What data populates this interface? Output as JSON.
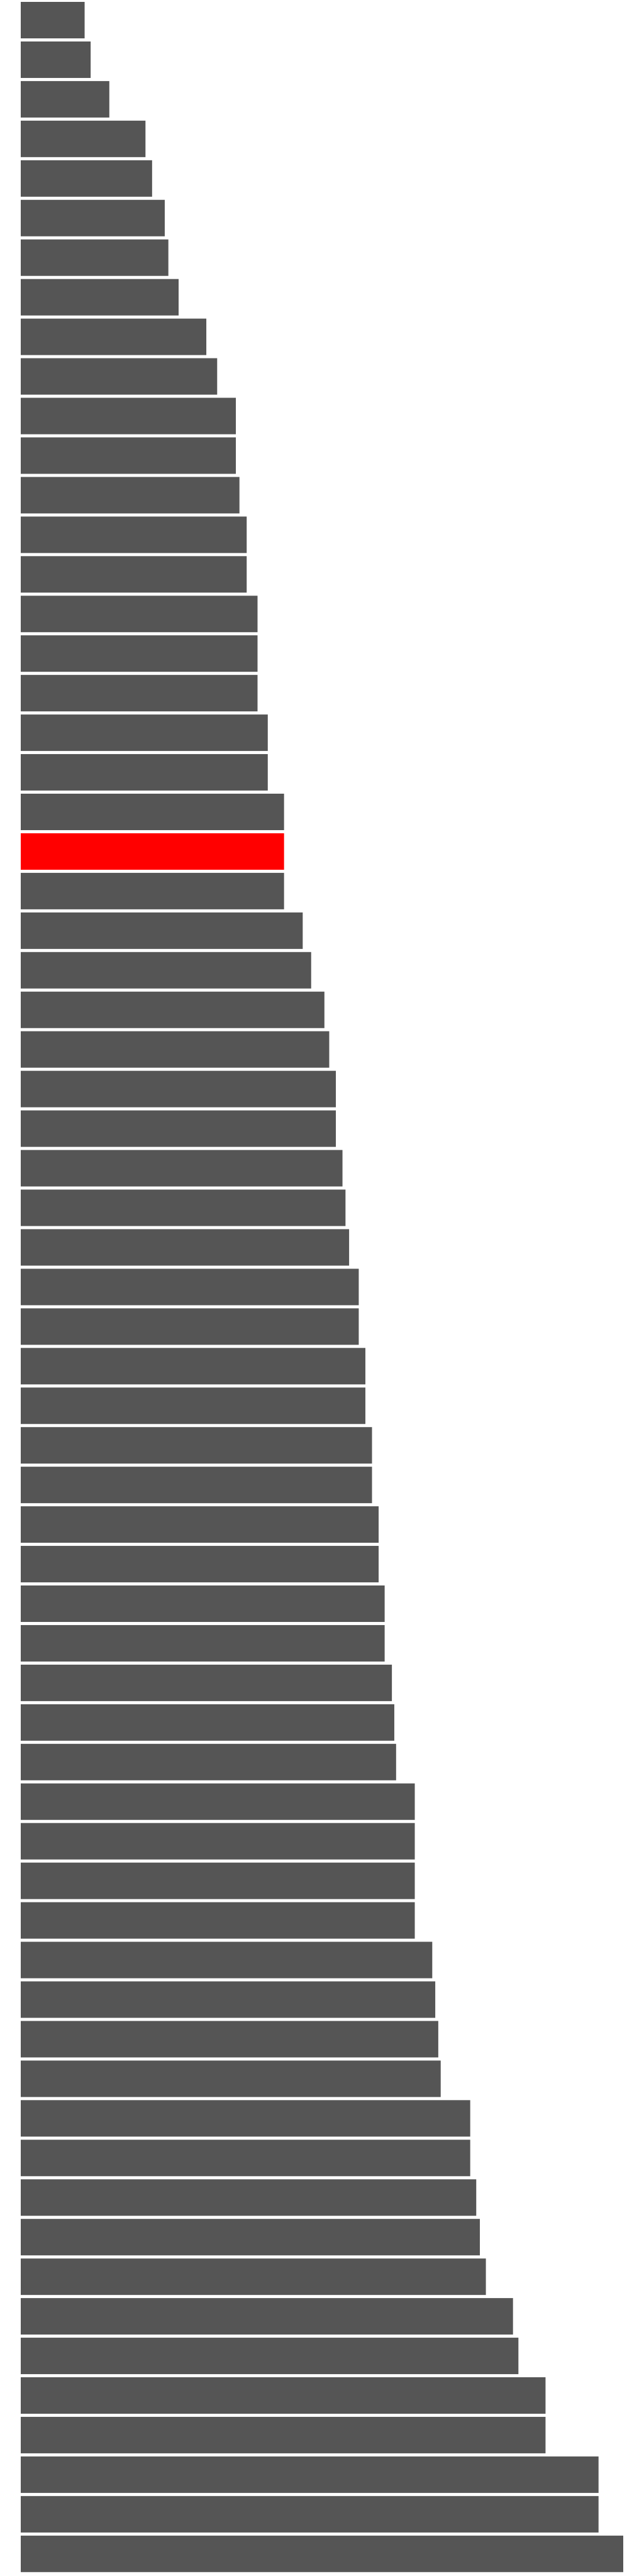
{
  "chart_data": {
    "type": "bar",
    "orientation": "horizontal",
    "title": "",
    "xlabel": "",
    "ylabel": "",
    "grid": false,
    "legend": false,
    "xlim": [
      0,
      100
    ],
    "colors": {
      "bar": "#555555",
      "highlight": "#ff0000",
      "background": "#ffffff"
    },
    "highlight_index": 21,
    "values": [
      10.6,
      11.6,
      14.7,
      20.7,
      21.8,
      23.9,
      24.5,
      26.2,
      30.8,
      32.6,
      35.7,
      35.7,
      36.3,
      37.5,
      37.5,
      39.3,
      39.3,
      39.3,
      41.0,
      41.0,
      43.7,
      43.7,
      43.7,
      46.8,
      48.2,
      50.4,
      51.2,
      52.3,
      52.3,
      53.4,
      53.9,
      54.5,
      56.1,
      56.1,
      57.2,
      57.2,
      58.3,
      58.3,
      59.4,
      59.4,
      60.4,
      60.4,
      61.6,
      62.0,
      62.3,
      65.4,
      65.4,
      65.4,
      65.4,
      68.3,
      68.8,
      69.3,
      69.7,
      74.6,
      74.6,
      75.6,
      76.2,
      77.2,
      81.7,
      82.6,
      87.1,
      87.1,
      95.9,
      95.9,
      100.0
    ]
  }
}
